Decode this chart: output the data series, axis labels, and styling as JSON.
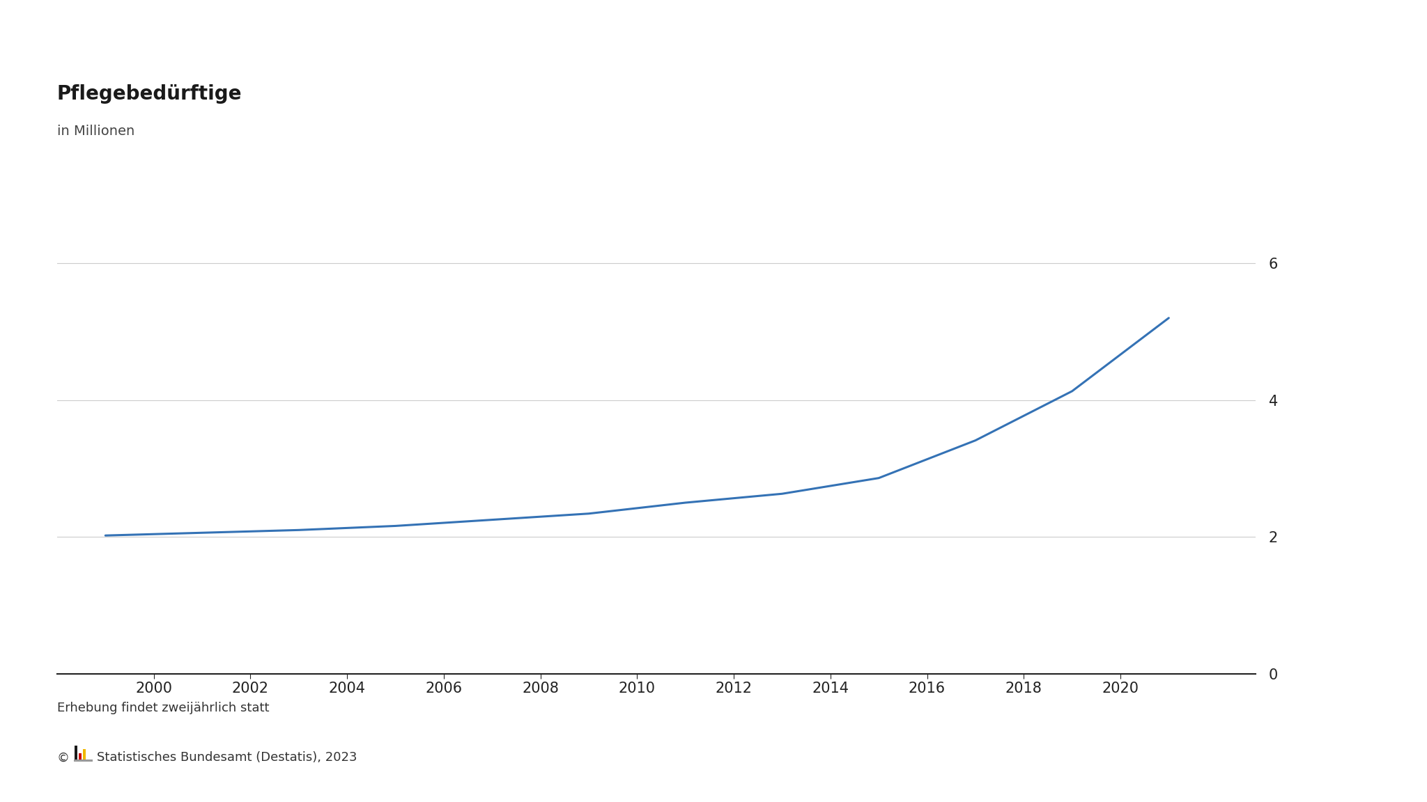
{
  "title": "Pflegebedürftige",
  "subtitle": "in Millionen",
  "line_color": "#3472b5",
  "background_color": "#ffffff",
  "years": [
    1999,
    2001,
    2003,
    2005,
    2007,
    2009,
    2011,
    2013,
    2015,
    2017,
    2019,
    2021
  ],
  "values": [
    2.02,
    2.06,
    2.1,
    2.16,
    2.25,
    2.34,
    2.5,
    2.63,
    2.86,
    3.41,
    4.13,
    5.2
  ],
  "xlim": [
    1998.0,
    2022.8
  ],
  "ylim": [
    0,
    6.8
  ],
  "yticks": [
    0,
    2,
    4,
    6
  ],
  "xticks": [
    2000,
    2002,
    2004,
    2006,
    2008,
    2010,
    2012,
    2014,
    2016,
    2018,
    2020
  ],
  "grid_color": "#cccccc",
  "axis_color": "#222222",
  "tick_color": "#222222",
  "footnote": "Erhebung findet zweijährlich statt",
  "source_text": "©   Statistisches Bundesamt (Destatis), 2023",
  "title_fontsize": 20,
  "subtitle_fontsize": 14,
  "tick_fontsize": 15,
  "footnote_fontsize": 13,
  "source_fontsize": 13,
  "line_width": 2.2
}
